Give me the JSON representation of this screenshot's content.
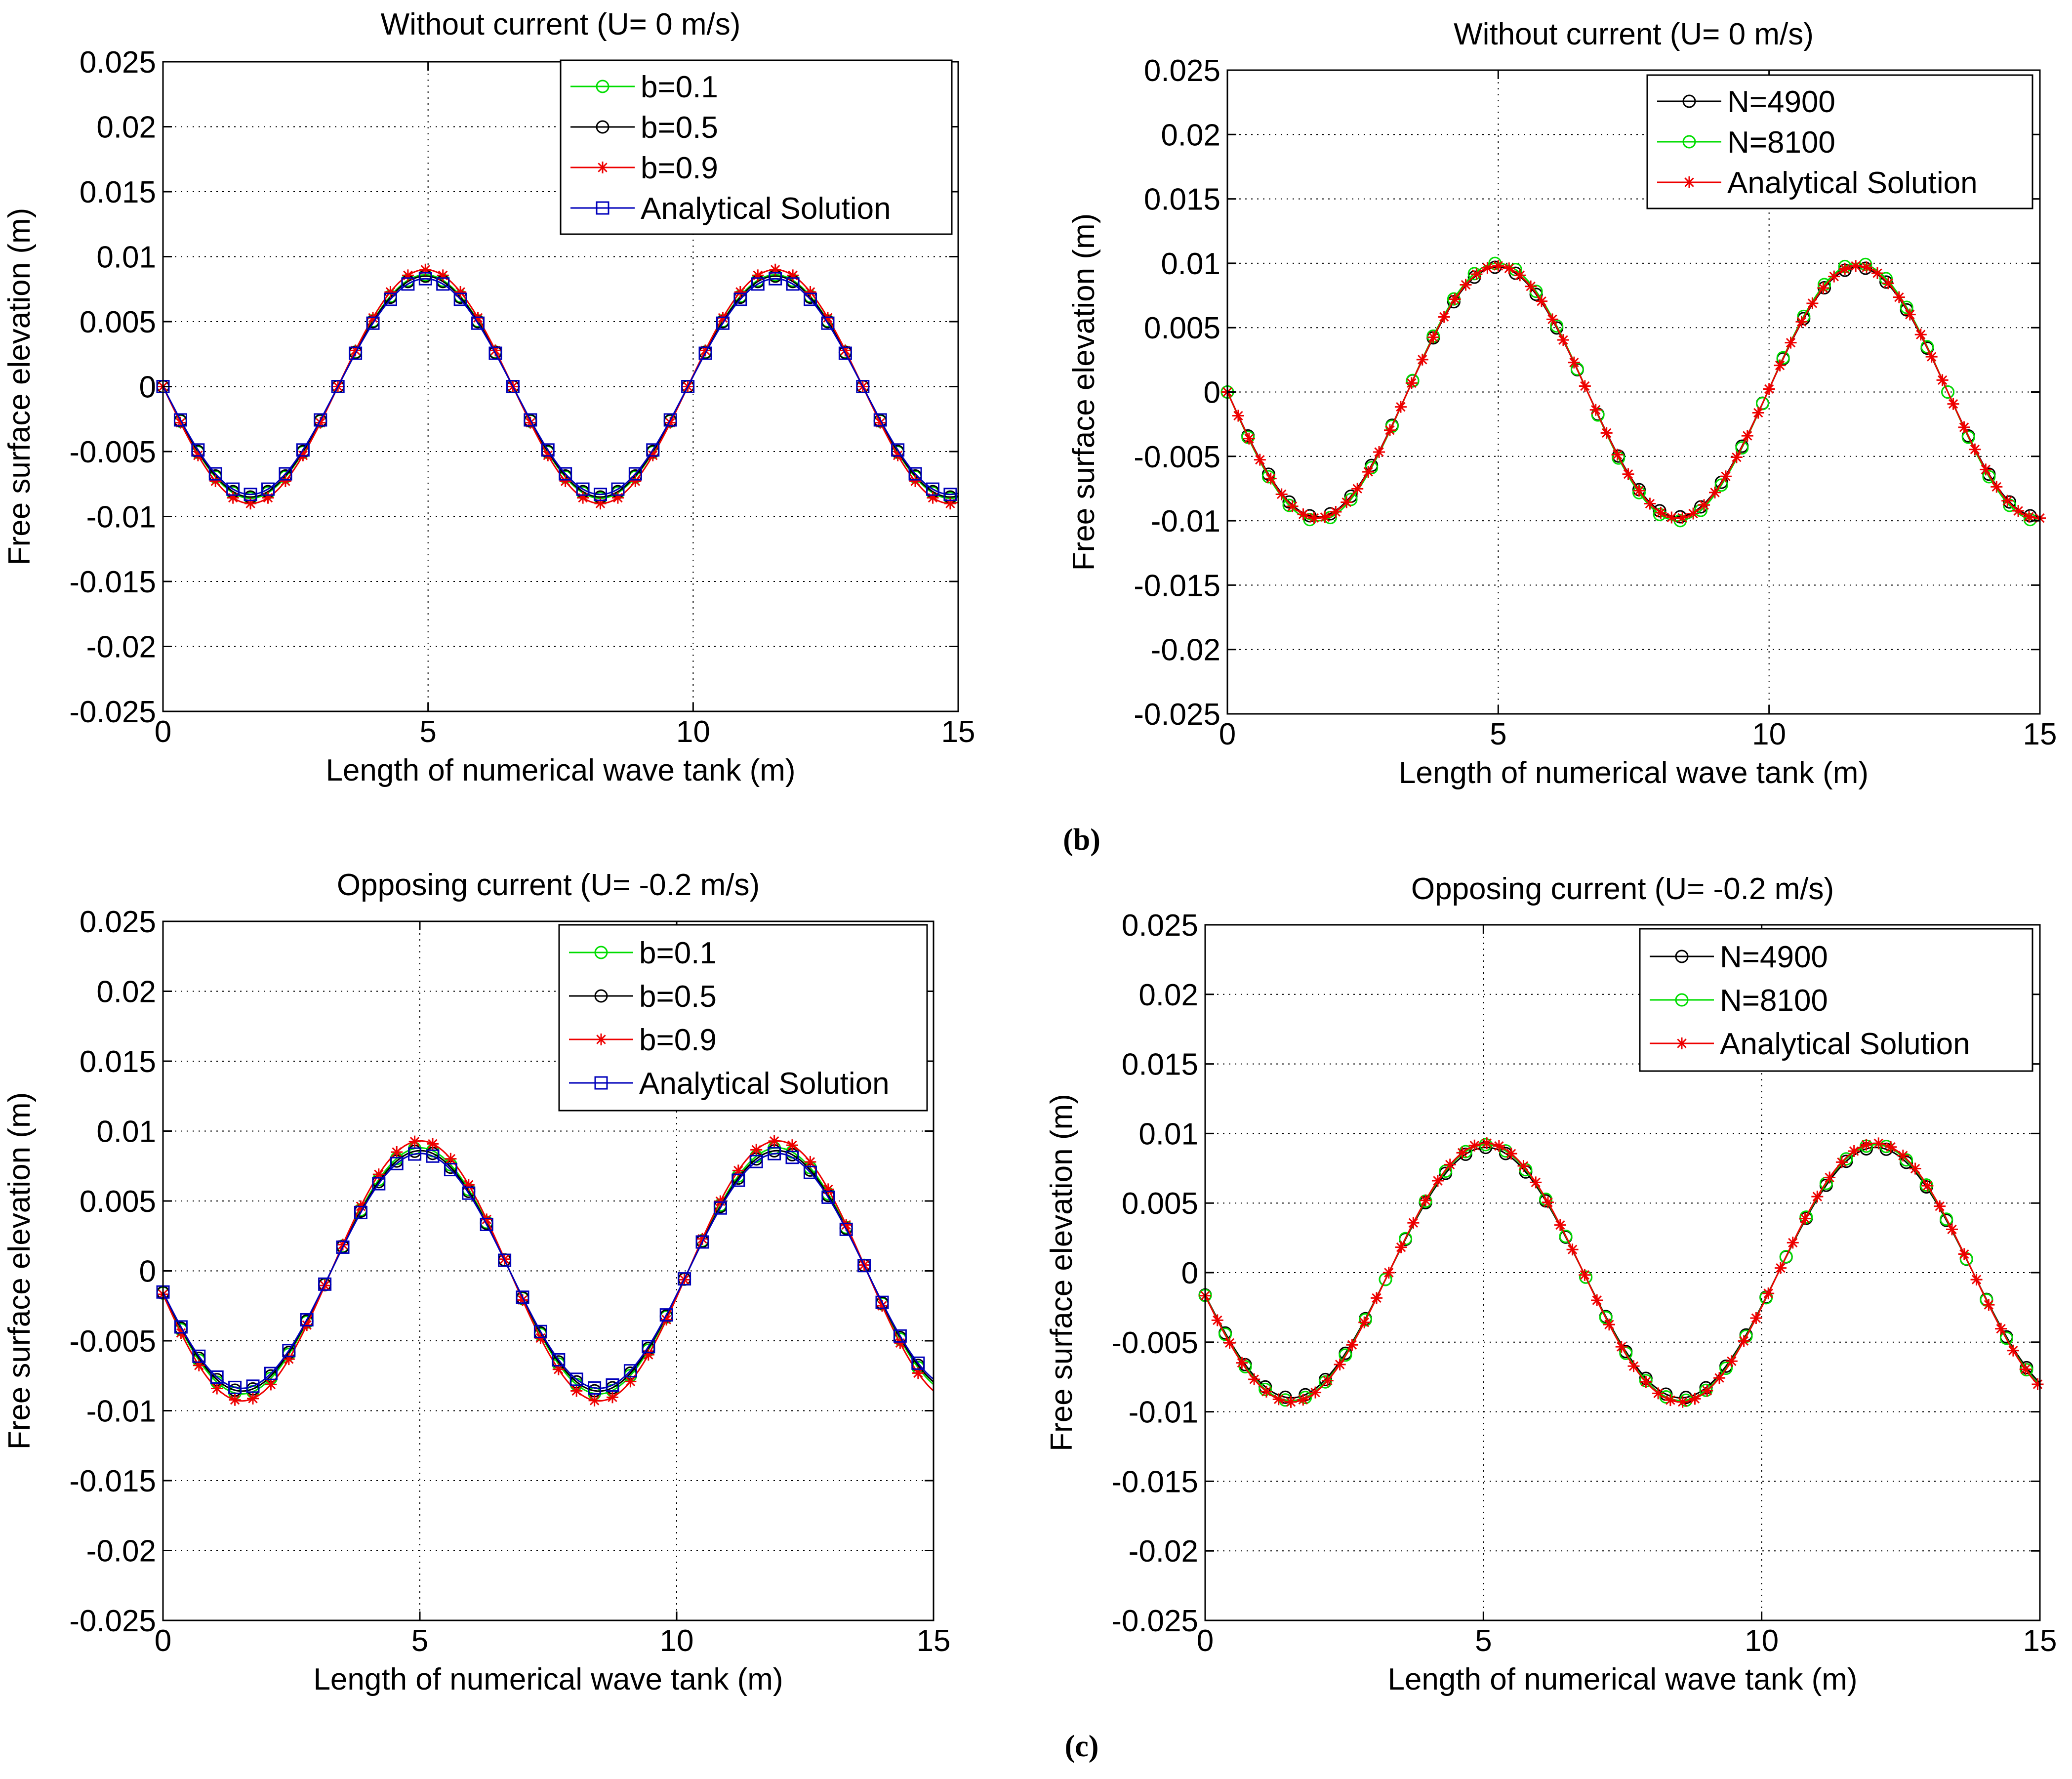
{
  "colors": {
    "green": "#00dd00",
    "black": "#000000",
    "red": "#ee0000",
    "blue": "#0000bb",
    "grid": "#000000"
  },
  "captions": {
    "b": "(b)",
    "c": "(c)"
  },
  "chart_data": [
    {
      "type": "line",
      "title": "Without current (U= 0 m/s)",
      "xlabel": "Length of numerical wave tank (m)",
      "ylabel": "Free surface elevation (m)",
      "xlim": [
        0,
        15
      ],
      "ylim": [
        -0.025,
        0.025
      ],
      "xticks": [
        0,
        5,
        10,
        15
      ],
      "yticks": [
        -0.025,
        -0.02,
        -0.015,
        -0.01,
        -0.005,
        0,
        0.005,
        0.01,
        0.015,
        0.02,
        0.025
      ],
      "ytick_labels": [
        "-0.025",
        "-0.02",
        "-0.015",
        "-0.01",
        "-0.005",
        "0",
        "0.005",
        "0.01",
        "0.015",
        "0.02",
        "0.025"
      ],
      "grid": true,
      "legend_position": "top-right",
      "wavelength": 6.6,
      "phase_x0": 0,
      "series": [
        {
          "name": "b=0.1",
          "color": "green",
          "marker": "circle",
          "amplitude": 0.0086,
          "x_start": 0,
          "x_end": 15,
          "x_step": 0.33
        },
        {
          "name": "b=0.5",
          "color": "black",
          "marker": "circle",
          "amplitude": 0.0085,
          "x_start": 0,
          "x_end": 15,
          "x_step": 0.33
        },
        {
          "name": "b=0.9",
          "color": "red",
          "marker": "star",
          "amplitude": 0.009,
          "x_start": 0,
          "x_end": 15,
          "x_step": 0.33
        },
        {
          "name": "Analytical Solution",
          "color": "blue",
          "marker": "square",
          "amplitude": 0.0083,
          "x_start": 0,
          "x_end": 15,
          "x_step": 0.33
        }
      ]
    },
    {
      "type": "line",
      "title": "Without current (U= 0 m/s)",
      "xlabel": "Length of numerical wave tank (m)",
      "ylabel": "Free surface elevation (m)",
      "xlim": [
        0,
        15
      ],
      "ylim": [
        -0.025,
        0.025
      ],
      "xticks": [
        0,
        5,
        10,
        15
      ],
      "yticks": [
        -0.025,
        -0.02,
        -0.015,
        -0.01,
        -0.005,
        0,
        0.005,
        0.01,
        0.015,
        0.02,
        0.025
      ],
      "ytick_labels": [
        "-0.025",
        "-0.02",
        "-0.015",
        "-0.01",
        "-0.005",
        "0",
        "0.005",
        "0.01",
        "0.015",
        "0.02",
        "0.025"
      ],
      "grid": true,
      "legend_position": "top-right",
      "wavelength": 6.65,
      "phase_x0": 0,
      "series": [
        {
          "name": "N=4900",
          "color": "black",
          "marker": "circle",
          "amplitude": 0.0097,
          "x_start": 0,
          "x_end": 15,
          "x_step": 0.38
        },
        {
          "name": "N=8100",
          "color": "green",
          "marker": "circle",
          "amplitude": 0.01,
          "x_start": 0,
          "x_end": 15,
          "x_step": 0.38
        },
        {
          "name": "Analytical Solution",
          "color": "red",
          "marker": "star",
          "amplitude": 0.0098,
          "x_start": 0,
          "x_end": 15,
          "x_step": 0.2
        }
      ]
    },
    {
      "type": "line",
      "title": "Opposing current (U= -0.2 m/s)",
      "xlabel": "Length of numerical wave tank (m)",
      "ylabel": "Free surface elevation (m)",
      "xlim": [
        0,
        15
      ],
      "ylim": [
        -0.025,
        0.025
      ],
      "xticks": [
        0,
        5,
        10,
        15
      ],
      "yticks": [
        -0.025,
        -0.02,
        -0.015,
        -0.01,
        -0.005,
        0,
        0.005,
        0.01,
        0.015,
        0.02,
        0.025
      ],
      "ytick_labels": [
        "-0.025",
        "-0.02",
        "-0.015",
        "-0.01",
        "-0.005",
        "0",
        "0.005",
        "0.01",
        "0.015",
        "0.02",
        "0.025"
      ],
      "grid": true,
      "legend_position": "top-right",
      "wavelength": 6.95,
      "phase_x0": -0.2,
      "series": [
        {
          "name": "b=0.1",
          "color": "green",
          "marker": "circle",
          "amplitude": 0.0088,
          "x_start": 0,
          "x_end": 15,
          "x_step": 0.35
        },
        {
          "name": "b=0.5",
          "color": "black",
          "marker": "circle",
          "amplitude": 0.0086,
          "x_start": 0,
          "x_end": 15,
          "x_step": 0.35
        },
        {
          "name": "b=0.9",
          "color": "red",
          "marker": "star",
          "amplitude": 0.0093,
          "x_start": 0,
          "x_end": 15,
          "x_step": 0.35
        },
        {
          "name": "Analytical Solution",
          "color": "blue",
          "marker": "square",
          "amplitude": 0.0084,
          "x_start": 0,
          "x_end": 15,
          "x_step": 0.35
        }
      ]
    },
    {
      "type": "line",
      "title": "Opposing current (U= -0.2 m/s)",
      "xlabel": "Length of numerical wave tank (m)",
      "ylabel": "Free surface elevation (m)",
      "xlim": [
        0,
        15
      ],
      "ylim": [
        -0.025,
        0.025
      ],
      "xticks": [
        0,
        5,
        10,
        15
      ],
      "yticks": [
        -0.025,
        -0.02,
        -0.015,
        -0.01,
        -0.005,
        0,
        0.005,
        0.01,
        0.015,
        0.02,
        0.025
      ],
      "ytick_labels": [
        "-0.025",
        "-0.02",
        "-0.015",
        "-0.01",
        "-0.005",
        "0",
        "0.005",
        "0.01",
        "0.015",
        "0.02",
        "0.025"
      ],
      "grid": true,
      "legend_position": "top-right",
      "wavelength": 7.0,
      "phase_x0": -0.2,
      "series": [
        {
          "name": "N=4900",
          "color": "black",
          "marker": "circle",
          "amplitude": 0.009,
          "x_start": 0,
          "x_end": 15,
          "x_step": 0.36
        },
        {
          "name": "N=8100",
          "color": "green",
          "marker": "circle",
          "amplitude": 0.0092,
          "x_start": 0,
          "x_end": 15,
          "x_step": 0.36
        },
        {
          "name": "Analytical Solution",
          "color": "red",
          "marker": "star",
          "amplitude": 0.0093,
          "x_start": 0,
          "x_end": 15,
          "x_step": 0.22
        }
      ]
    }
  ]
}
